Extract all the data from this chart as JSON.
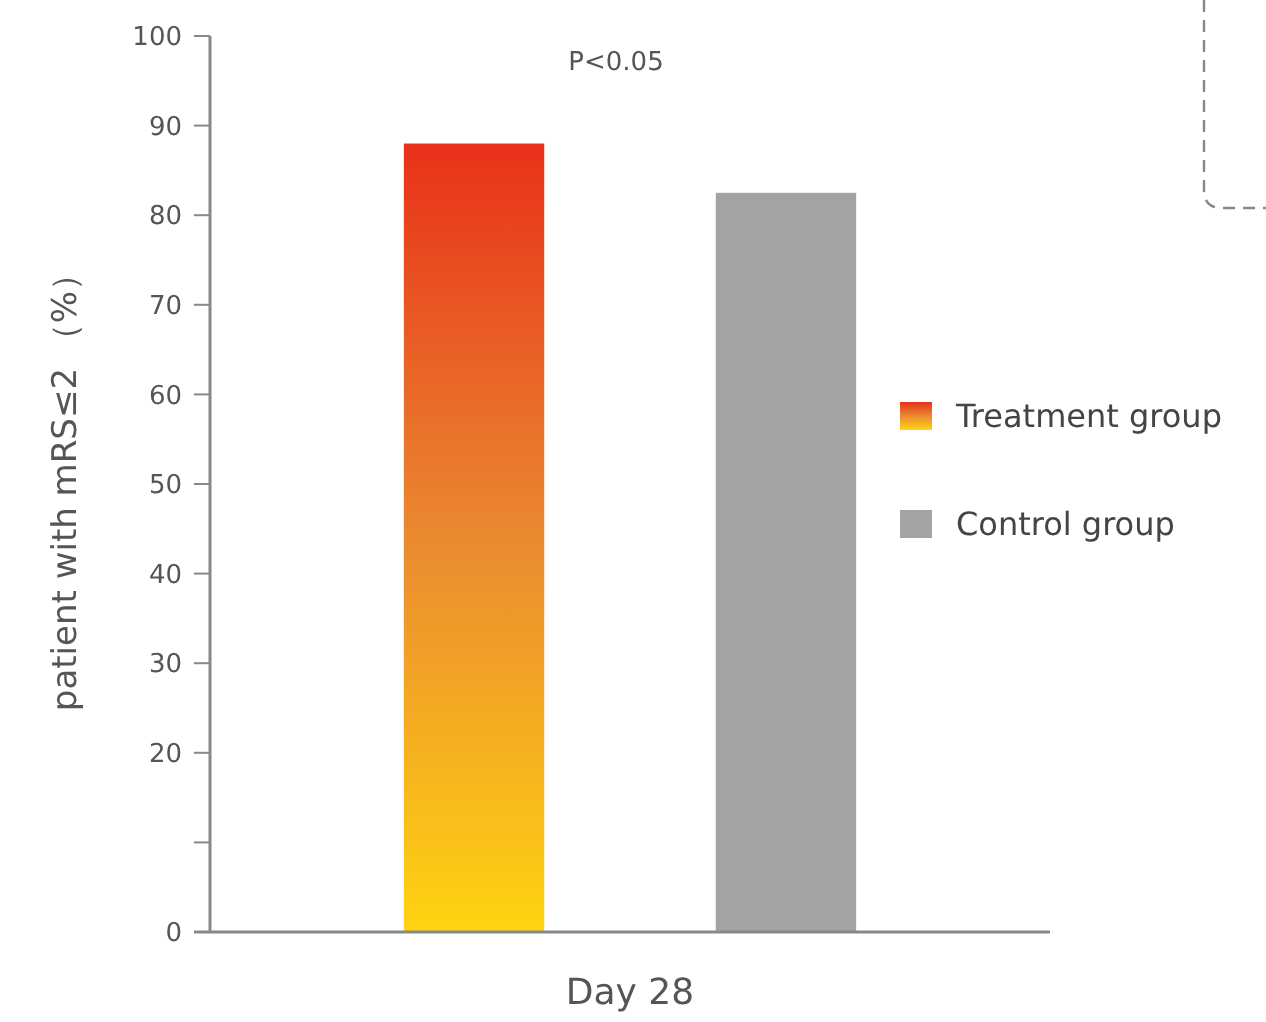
{
  "chart_data": {
    "type": "bar",
    "ylabel": "patient with mRS≤2 （%）",
    "categories": [
      "Day 28"
    ],
    "series": [
      {
        "name": "Treatment group",
        "color": "#ea8a30",
        "values": [
          88
        ]
      },
      {
        "name": "Control group",
        "color": "#a3a3a3",
        "values": [
          82.5
        ]
      }
    ],
    "ylim": [
      0,
      100
    ],
    "yticks": [
      0,
      {
        "value": 10,
        "label": null
      },
      20,
      30,
      40,
      50,
      60,
      70,
      80,
      90,
      100
    ],
    "annotations": [
      "P<0.05"
    ],
    "legend": "right",
    "grid": false
  }
}
